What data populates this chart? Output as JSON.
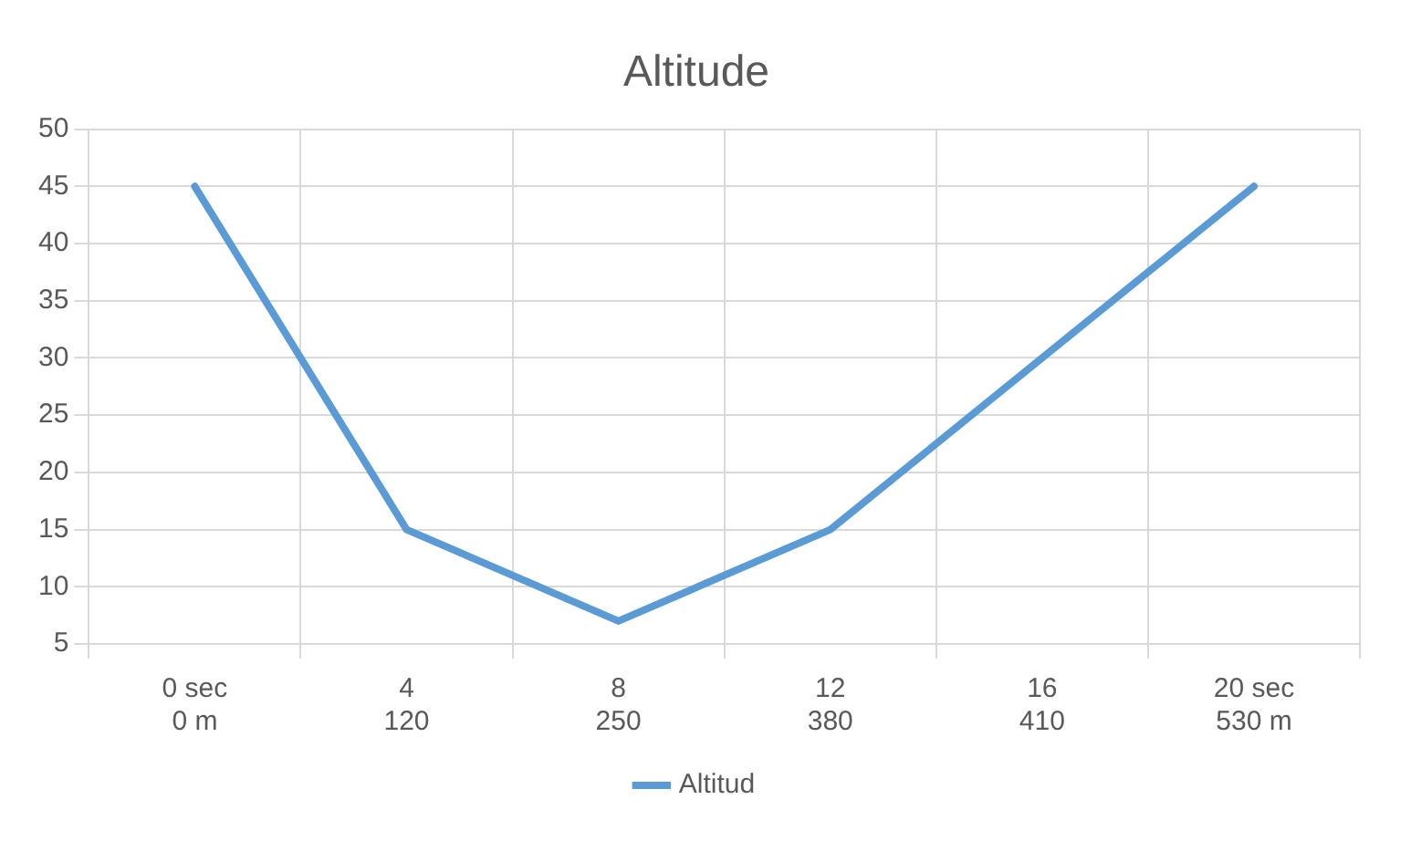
{
  "chart_data": {
    "type": "line",
    "title": "Altitude",
    "categories": [
      "0 sec\n0 m",
      "4\n120",
      "8\n250",
      "12\n380",
      "16\n410",
      "20 sec\n530 m"
    ],
    "series": [
      {
        "name": "Altitud",
        "color": "#5b9bd5",
        "values": [
          45,
          15,
          7,
          15,
          30,
          45
        ]
      }
    ],
    "ylim": [
      5,
      50
    ],
    "yticks": [
      5,
      10,
      15,
      20,
      25,
      30,
      35,
      40,
      45,
      50
    ],
    "grid": true,
    "legend": "bottom",
    "marker": "none"
  }
}
